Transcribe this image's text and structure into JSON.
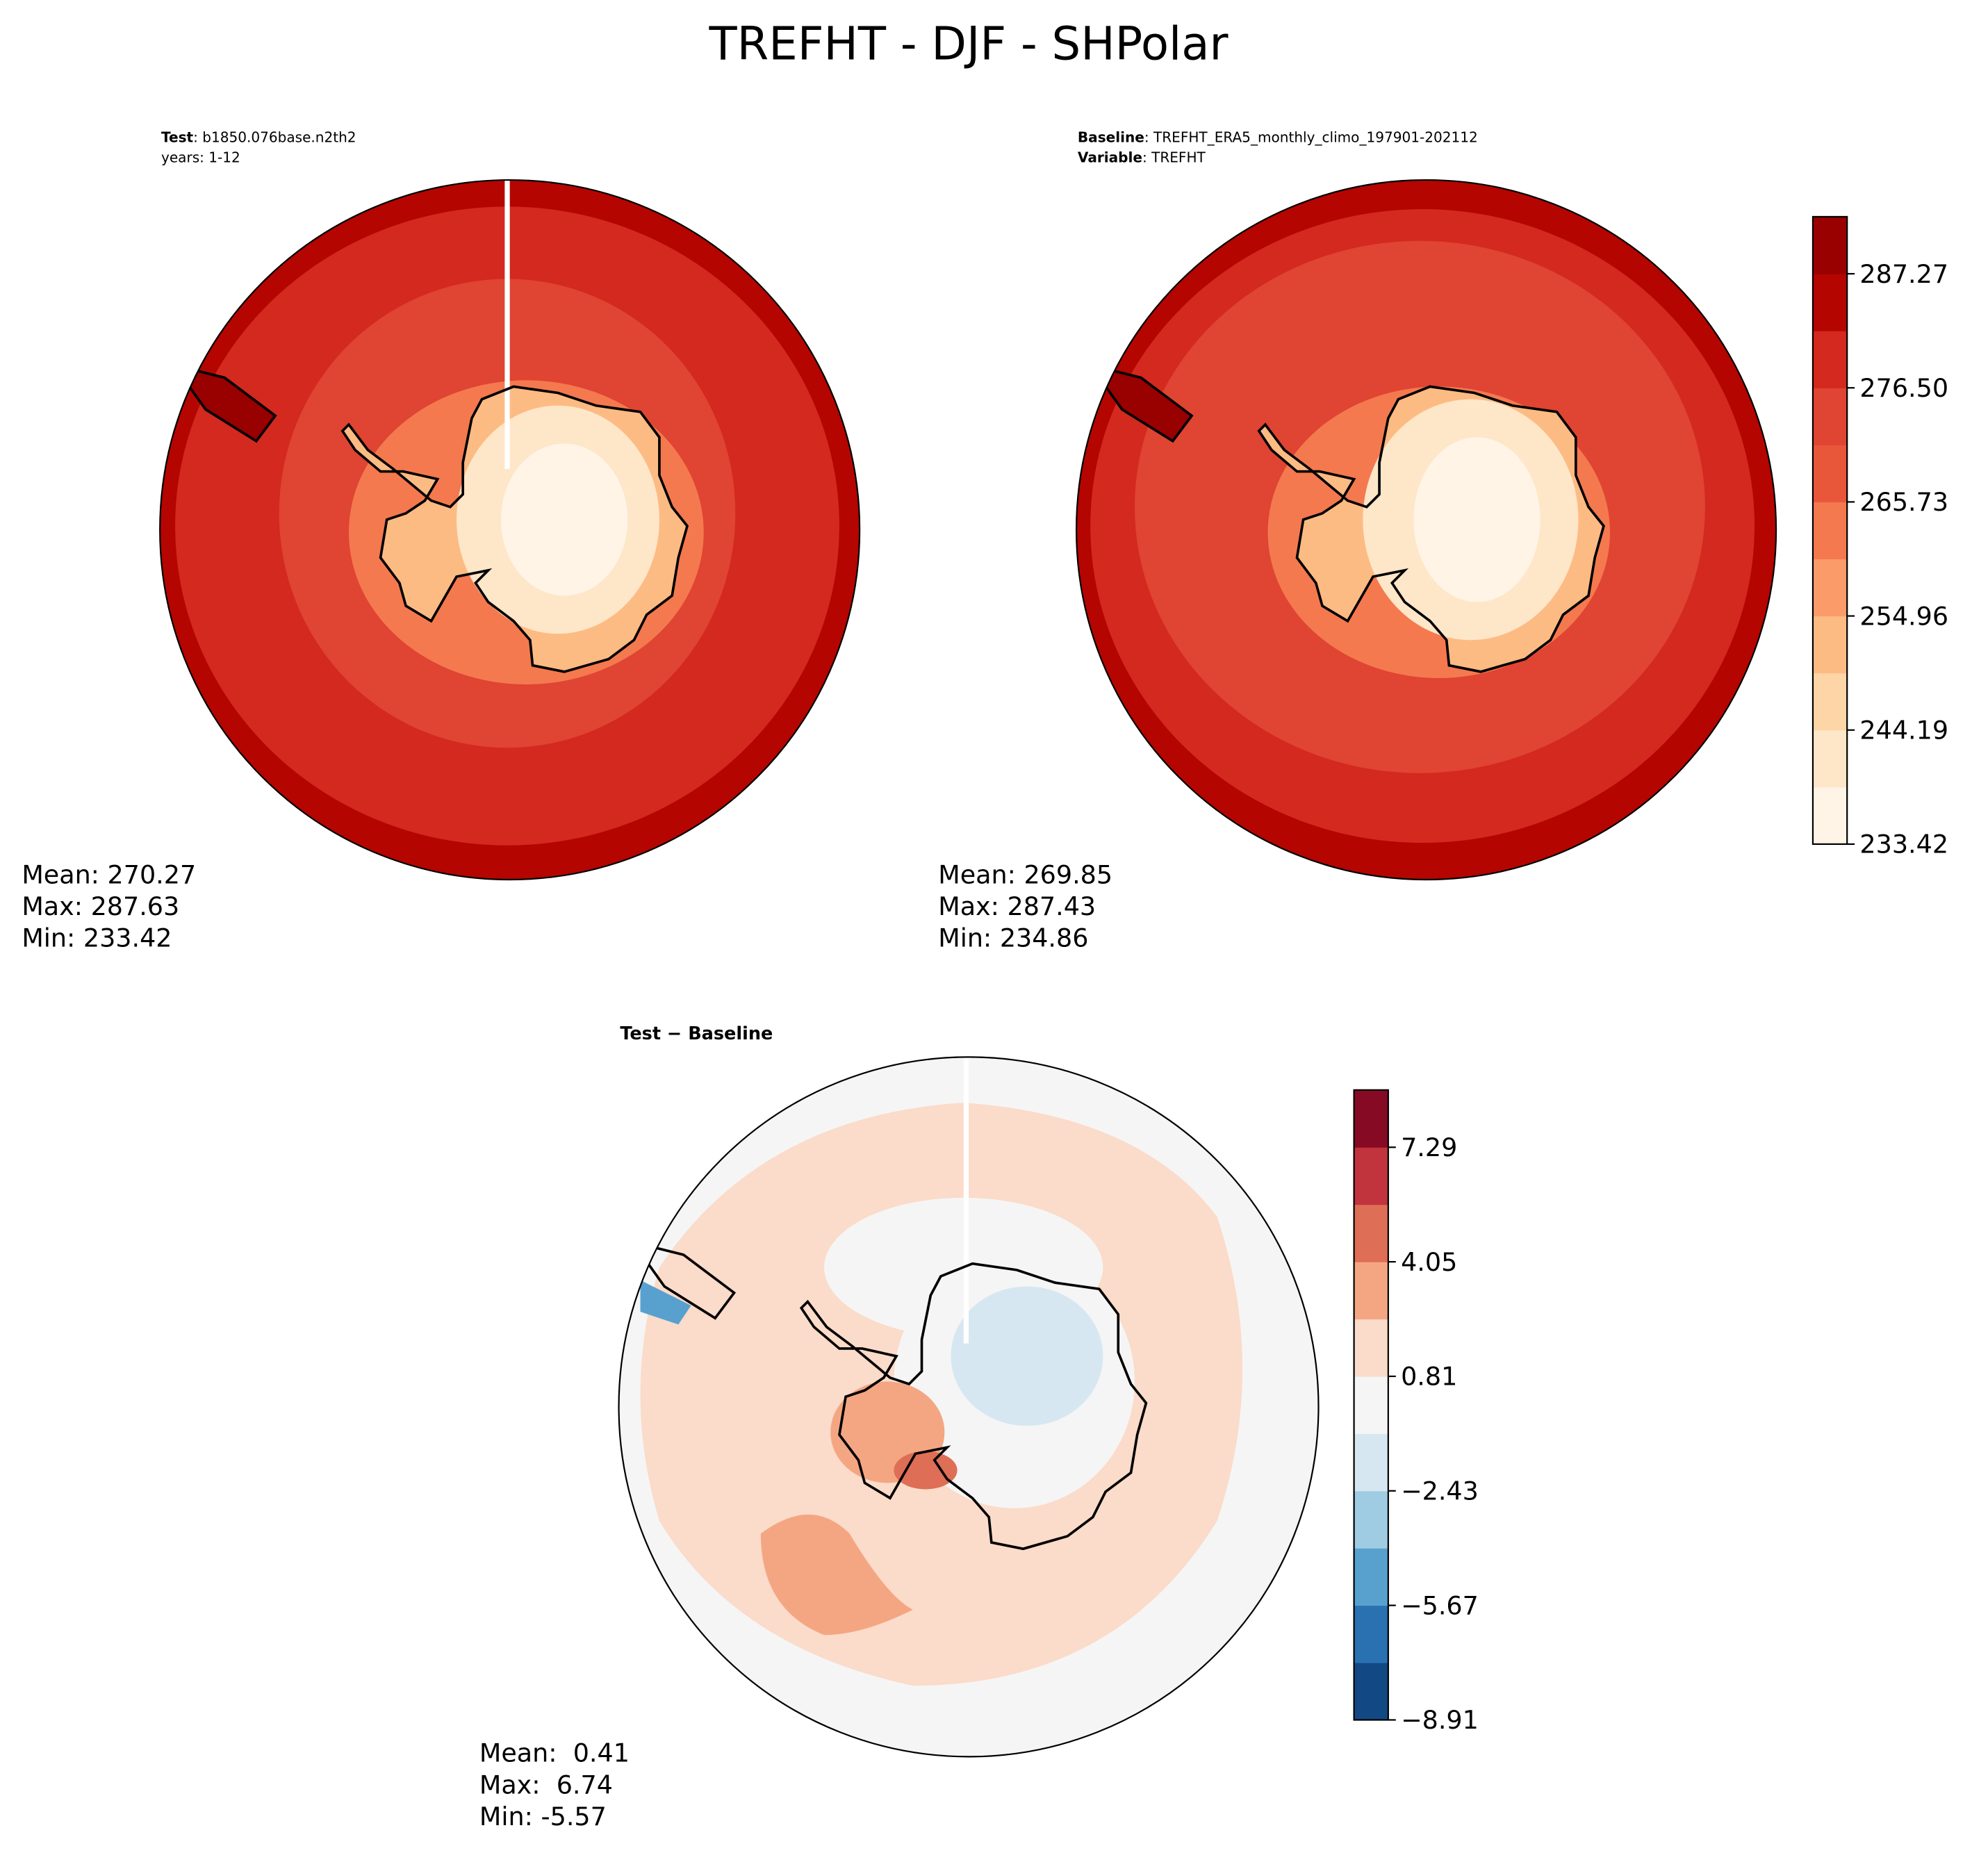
{
  "title": "TREFHT - DJF - SHPolar",
  "panels": [
    {
      "header": [
        {
          "key": "Test",
          "text": ": b1850.076base.n2th2"
        },
        {
          "text": "years: 1-12"
        }
      ],
      "stats": [
        "Mean: 270.27",
        "Max: 287.63",
        "Min: 233.42"
      ]
    },
    {
      "header": [
        {
          "key": "Baseline",
          "text": ": TREFHT_ERA5_monthly_climo_197901-202112"
        },
        {
          "key": "Variable",
          "text": ": TREFHT"
        }
      ],
      "stats": [
        "Mean: 269.85",
        "Max: 287.43",
        "Min: 234.86"
      ]
    },
    {
      "header": [
        {
          "key": "Test − Baseline"
        }
      ],
      "stats": [
        "Mean:  0.41",
        "Max:  6.74",
        "Min: -5.57"
      ]
    }
  ],
  "colorbars": [
    {
      "lim": [
        233.42,
        292.655
      ],
      "levels": [
        233.42,
        238.805,
        244.19,
        249.575,
        254.96,
        260.345,
        265.73,
        271.115,
        276.5,
        281.885,
        287.27,
        292.655
      ],
      "colors": [
        "#fff4e6",
        "#fee6c9",
        "#fdd5a6",
        "#fdbb84",
        "#fc9b6a",
        "#f4794f",
        "#e9573a",
        "#e04432",
        "#d3291e",
        "#b50500",
        "#990000"
      ],
      "ticks": [
        233.42,
        244.19,
        254.96,
        265.73,
        {
          "value": 276.5,
          "label": "276.50"
        },
        287.27
      ]
    },
    {
      "lim": [
        -8.91,
        8.91
      ],
      "levels": [
        -8.91,
        -7.29,
        -5.67,
        -4.05,
        -2.43,
        -0.81,
        0.81,
        2.43,
        4.05,
        5.67,
        7.29,
        8.91
      ],
      "colors": [
        "#124984",
        "#2a71b2",
        "#58a1cf",
        "#9fcce2",
        "#d6e7f1",
        "#f5f5f5",
        "#fbdbc9",
        "#f4a683",
        "#de6e56",
        "#c1343d",
        "#870a24"
      ],
      "ticks": [
        {
          "value": -8.91,
          "label": "−8.91"
        },
        {
          "value": -5.67,
          "label": "−5.67"
        },
        {
          "value": -2.43,
          "label": "−2.43"
        },
        0.81,
        4.05,
        7.29
      ]
    }
  ]
}
